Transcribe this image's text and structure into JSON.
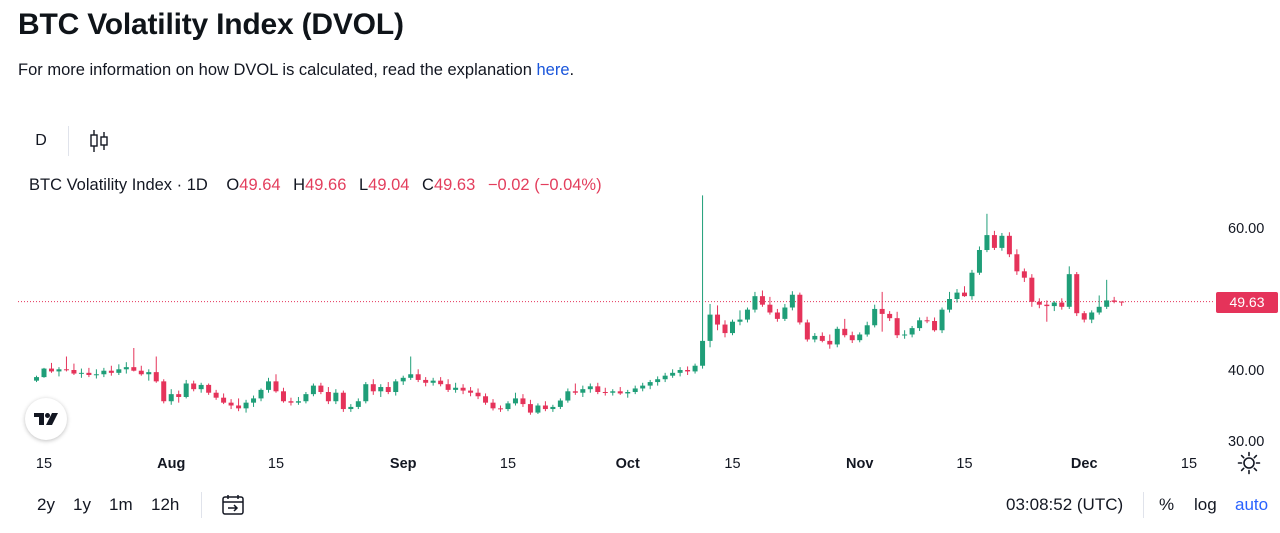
{
  "page": {
    "title": "BTC Volatility Index (DVOL)",
    "subtitle_prefix": "For more information on how DVOL is calculated, read the explanation ",
    "subtitle_link": "here",
    "subtitle_suffix": "."
  },
  "toolbar": {
    "interval": "D",
    "chart_style_icon": "candles-icon"
  },
  "legend": {
    "symbol": "BTC Volatility Index · 1D",
    "o_label": "O",
    "o_value": "49.64",
    "h_label": "H",
    "h_value": "49.66",
    "l_label": "L",
    "l_value": "49.04",
    "c_label": "C",
    "c_value": "49.63",
    "change": "−0.02 (−0.04%)"
  },
  "price_tag": "49.63",
  "colors": {
    "up": "#26a69a",
    "up_body": "#1f9e78",
    "down": "#e5335a",
    "accent": "#2962ff",
    "link": "#1a56db"
  },
  "bottom_bar": {
    "ranges": [
      "2y",
      "1y",
      "1m",
      "12h"
    ],
    "goto_icon": "calendar-goto-icon",
    "clock": "03:08:52 (UTC)",
    "percent": "%",
    "log": "log",
    "auto": "auto"
  },
  "chart_data": {
    "type": "candlestick",
    "title": "BTC Volatility Index · 1D",
    "y_ticks": [
      "60.00",
      "40.00",
      "30.00"
    ],
    "y_tick_values": [
      60,
      40,
      30
    ],
    "x_ticks": [
      "15",
      "Aug",
      "15",
      "Sep",
      "15",
      "Oct",
      "15",
      "Nov",
      "15",
      "Dec",
      "15"
    ],
    "x_tick_dates": [
      "2024-07-15",
      "2024-08-01",
      "2024-08-15",
      "2024-09-01",
      "2024-09-15",
      "2024-10-01",
      "2024-10-15",
      "2024-11-01",
      "2024-11-15",
      "2024-12-01",
      "2024-12-15"
    ],
    "x_tick_bold": [
      false,
      true,
      false,
      true,
      false,
      true,
      false,
      true,
      false,
      true,
      false
    ],
    "ylim": [
      29,
      65
    ],
    "xlim": [
      "2024-07-15",
      "2024-12-23"
    ],
    "last_price": 49.63,
    "start_date": "2024-07-14",
    "ohlc": [
      [
        38.5,
        39.2,
        38.3,
        39.0
      ],
      [
        39.0,
        40.3,
        38.9,
        40.2
      ],
      [
        40.2,
        41.0,
        39.6,
        39.8
      ],
      [
        39.8,
        40.4,
        39.1,
        40.1
      ],
      [
        40.1,
        41.9,
        39.8,
        40.0
      ],
      [
        40.0,
        40.9,
        39.3,
        39.5
      ],
      [
        39.5,
        40.2,
        38.9,
        39.6
      ],
      [
        39.6,
        40.3,
        39.0,
        39.3
      ],
      [
        39.3,
        40.1,
        38.8,
        39.4
      ],
      [
        39.4,
        40.3,
        39.0,
        39.9
      ],
      [
        39.9,
        40.6,
        39.2,
        39.6
      ],
      [
        39.6,
        40.8,
        39.3,
        40.1
      ],
      [
        40.1,
        41.1,
        39.5,
        40.4
      ],
      [
        40.4,
        43.1,
        39.8,
        39.9
      ],
      [
        39.9,
        40.6,
        39.2,
        39.4
      ],
      [
        39.4,
        40.1,
        38.5,
        39.7
      ],
      [
        39.7,
        41.9,
        38.2,
        38.4
      ],
      [
        38.4,
        38.7,
        35.3,
        35.6
      ],
      [
        35.6,
        37.3,
        35.1,
        36.6
      ],
      [
        36.6,
        37.1,
        35.4,
        36.2
      ],
      [
        36.2,
        38.6,
        36.0,
        38.1
      ],
      [
        38.1,
        38.5,
        37.0,
        37.3
      ],
      [
        37.3,
        38.2,
        36.8,
        37.9
      ],
      [
        37.9,
        38.1,
        36.5,
        36.8
      ],
      [
        36.8,
        37.2,
        35.8,
        36.1
      ],
      [
        36.1,
        36.7,
        35.2,
        35.4
      ],
      [
        35.4,
        35.9,
        34.5,
        35.0
      ],
      [
        35.0,
        36.0,
        34.2,
        34.6
      ],
      [
        34.6,
        35.8,
        34.0,
        35.4
      ],
      [
        35.4,
        36.4,
        34.8,
        36.0
      ],
      [
        36.0,
        37.4,
        35.6,
        37.2
      ],
      [
        37.2,
        38.9,
        36.8,
        38.4
      ],
      [
        38.4,
        39.4,
        36.8,
        37.0
      ],
      [
        37.0,
        37.5,
        35.4,
        35.6
      ],
      [
        35.6,
        36.1,
        35.0,
        35.4
      ],
      [
        35.4,
        36.2,
        35.1,
        35.6
      ],
      [
        35.6,
        36.9,
        35.3,
        36.6
      ],
      [
        36.6,
        38.1,
        36.3,
        37.8
      ],
      [
        37.8,
        38.2,
        36.6,
        36.9
      ],
      [
        36.9,
        37.6,
        35.2,
        35.6
      ],
      [
        35.6,
        37.3,
        35.2,
        36.8
      ],
      [
        36.8,
        37.1,
        34.1,
        34.5
      ],
      [
        34.5,
        35.2,
        34.1,
        34.8
      ],
      [
        34.8,
        36.0,
        34.5,
        35.6
      ],
      [
        35.6,
        38.3,
        35.3,
        38.0
      ],
      [
        38.0,
        38.7,
        36.5,
        37.0
      ],
      [
        37.0,
        38.0,
        36.2,
        37.6
      ],
      [
        37.6,
        38.3,
        36.6,
        36.9
      ],
      [
        36.9,
        38.7,
        36.4,
        38.4
      ],
      [
        38.4,
        39.2,
        37.9,
        38.9
      ],
      [
        38.9,
        41.9,
        38.6,
        39.4
      ],
      [
        39.4,
        40.1,
        38.3,
        38.6
      ],
      [
        38.6,
        39.0,
        37.7,
        38.2
      ],
      [
        38.2,
        38.9,
        37.8,
        38.5
      ],
      [
        38.5,
        39.0,
        37.7,
        38.0
      ],
      [
        38.0,
        38.7,
        36.9,
        37.2
      ],
      [
        37.2,
        38.2,
        36.8,
        37.5
      ],
      [
        37.5,
        38.0,
        36.6,
        37.1
      ],
      [
        37.1,
        37.6,
        36.3,
        36.8
      ],
      [
        36.8,
        37.4,
        35.9,
        36.3
      ],
      [
        36.3,
        36.7,
        35.1,
        35.4
      ],
      [
        35.4,
        35.9,
        34.3,
        34.6
      ],
      [
        34.6,
        35.0,
        34.1,
        34.5
      ],
      [
        34.5,
        35.6,
        34.2,
        35.3
      ],
      [
        35.3,
        36.8,
        35.0,
        36.0
      ],
      [
        36.0,
        36.6,
        34.8,
        35.2
      ],
      [
        35.2,
        35.8,
        33.7,
        34.0
      ],
      [
        34.0,
        35.3,
        33.8,
        35.0
      ],
      [
        35.0,
        35.6,
        34.2,
        34.5
      ],
      [
        34.5,
        35.1,
        34.1,
        34.8
      ],
      [
        34.8,
        36.0,
        34.5,
        35.7
      ],
      [
        35.7,
        37.4,
        35.4,
        37.0
      ],
      [
        37.0,
        38.1,
        36.5,
        36.8
      ],
      [
        36.8,
        37.8,
        36.2,
        37.3
      ],
      [
        37.3,
        38.1,
        36.8,
        37.7
      ],
      [
        37.7,
        38.2,
        36.6,
        36.9
      ],
      [
        36.9,
        37.5,
        36.4,
        36.8
      ],
      [
        36.8,
        37.3,
        36.4,
        37.0
      ],
      [
        37.0,
        37.6,
        36.5,
        36.7
      ],
      [
        36.7,
        37.2,
        36.1,
        36.9
      ],
      [
        36.9,
        37.8,
        36.6,
        37.4
      ],
      [
        37.4,
        38.2,
        37.0,
        37.8
      ],
      [
        37.8,
        38.6,
        37.3,
        38.3
      ],
      [
        38.3,
        39.1,
        37.8,
        38.7
      ],
      [
        38.7,
        39.6,
        38.3,
        39.2
      ],
      [
        39.2,
        40.1,
        38.9,
        39.6
      ],
      [
        39.6,
        40.4,
        39.1,
        40.0
      ],
      [
        40.0,
        40.5,
        39.3,
        39.8
      ],
      [
        39.8,
        40.9,
        39.5,
        40.6
      ],
      [
        40.6,
        64.6,
        40.2,
        44.1
      ],
      [
        44.1,
        49.3,
        43.2,
        47.8
      ],
      [
        47.8,
        49.1,
        45.6,
        46.4
      ],
      [
        46.4,
        47.0,
        44.6,
        45.2
      ],
      [
        45.2,
        47.1,
        44.9,
        46.8
      ],
      [
        46.8,
        48.4,
        46.3,
        47.1
      ],
      [
        47.1,
        48.8,
        46.7,
        48.5
      ],
      [
        48.5,
        51.0,
        48.1,
        50.4
      ],
      [
        50.4,
        51.2,
        48.9,
        49.2
      ],
      [
        49.2,
        50.3,
        47.8,
        48.1
      ],
      [
        48.1,
        48.6,
        46.8,
        47.2
      ],
      [
        47.2,
        49.3,
        46.9,
        48.8
      ],
      [
        48.8,
        51.1,
        48.4,
        50.6
      ],
      [
        50.6,
        50.9,
        46.4,
        46.7
      ],
      [
        46.7,
        47.1,
        44.0,
        44.3
      ],
      [
        44.3,
        45.2,
        43.9,
        44.8
      ],
      [
        44.8,
        45.3,
        43.9,
        44.1
      ],
      [
        44.1,
        45.0,
        43.0,
        43.6
      ],
      [
        43.6,
        46.1,
        43.2,
        45.8
      ],
      [
        45.8,
        47.2,
        44.6,
        44.9
      ],
      [
        44.9,
        45.4,
        43.8,
        44.2
      ],
      [
        44.2,
        45.3,
        43.9,
        45.0
      ],
      [
        45.0,
        46.8,
        44.7,
        46.3
      ],
      [
        46.3,
        49.2,
        46.0,
        48.6
      ],
      [
        48.6,
        51.0,
        45.4,
        47.9
      ],
      [
        47.9,
        48.3,
        46.9,
        47.3
      ],
      [
        47.3,
        48.2,
        44.5,
        44.9
      ],
      [
        44.9,
        45.6,
        44.4,
        45.0
      ],
      [
        45.0,
        46.2,
        44.6,
        45.9
      ],
      [
        45.9,
        47.4,
        45.5,
        47.0
      ],
      [
        47.0,
        47.5,
        46.6,
        46.9
      ],
      [
        46.9,
        47.4,
        45.4,
        45.6
      ],
      [
        45.6,
        48.8,
        45.2,
        48.5
      ],
      [
        48.5,
        51.0,
        48.1,
        50.0
      ],
      [
        50.0,
        51.4,
        49.5,
        50.9
      ],
      [
        50.9,
        51.8,
        50.3,
        50.4
      ],
      [
        50.4,
        54.1,
        49.9,
        53.7
      ],
      [
        53.7,
        57.4,
        53.4,
        56.9
      ],
      [
        56.9,
        62.0,
        56.6,
        59.0
      ],
      [
        59.0,
        59.6,
        56.9,
        57.2
      ],
      [
        57.2,
        59.3,
        56.8,
        58.9
      ],
      [
        58.9,
        59.4,
        55.9,
        56.3
      ],
      [
        56.3,
        57.0,
        53.4,
        53.9
      ],
      [
        53.9,
        54.3,
        52.4,
        53.0
      ],
      [
        53.0,
        53.5,
        48.9,
        49.6
      ],
      [
        49.6,
        50.1,
        48.7,
        49.2
      ],
      [
        49.2,
        49.8,
        46.8,
        49.0
      ],
      [
        49.0,
        49.7,
        48.3,
        49.5
      ],
      [
        49.5,
        50.1,
        48.5,
        48.9
      ],
      [
        48.9,
        54.6,
        48.6,
        53.5
      ],
      [
        53.5,
        53.8,
        47.6,
        48.0
      ],
      [
        48.0,
        48.3,
        46.7,
        47.1
      ],
      [
        47.1,
        48.4,
        46.6,
        48.1
      ],
      [
        48.1,
        50.5,
        47.8,
        48.9
      ],
      [
        48.9,
        52.7,
        48.6,
        49.8
      ],
      [
        49.8,
        50.3,
        49.4,
        49.6
      ],
      [
        49.64,
        49.66,
        49.04,
        49.63
      ]
    ]
  }
}
